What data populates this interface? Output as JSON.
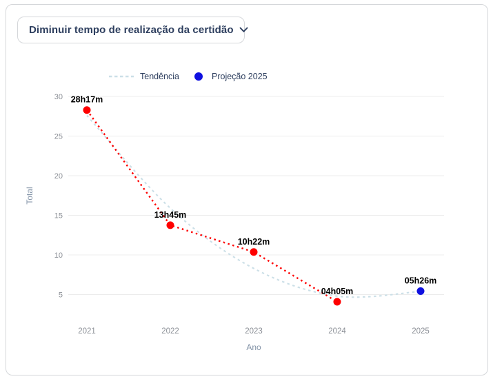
{
  "dropdown": {
    "label": "Diminuir tempo de realização da certidão",
    "chevron_icon": "chevron-down"
  },
  "legend": [
    {
      "label": "Tendência",
      "marker": "dashed-line",
      "color": "#cbdfe7"
    },
    {
      "label": "Projeção 2025",
      "marker": "dot",
      "color": "#0f10e0"
    }
  ],
  "chart_data": {
    "type": "line",
    "xlabel": "Ano",
    "ylabel": "Total",
    "x": [
      2021,
      2022,
      2023,
      2024,
      2025
    ],
    "yticks": [
      5,
      10,
      15,
      20,
      25,
      30
    ],
    "ylim": [
      2.5,
      31.5
    ],
    "grid": "horizontal",
    "legend_position": "top",
    "series": [
      {
        "role": "actual",
        "style": "dotted-line",
        "color": "#fe0000",
        "x": [
          2021,
          2022,
          2023,
          2024
        ],
        "values": [
          28.283,
          13.75,
          10.367,
          4.083
        ],
        "point_labels": [
          "28h17m",
          "13h45m",
          "10h22m",
          "04h05m"
        ]
      },
      {
        "role": "projection",
        "style": "point",
        "color": "#0f10e0",
        "x": [
          2025
        ],
        "values": [
          5.433
        ],
        "point_labels": [
          "05h26m"
        ]
      },
      {
        "role": "trend",
        "style": "dashed-curve",
        "color": "#cbdfe7",
        "x": [
          2021,
          2022,
          2023,
          2024,
          2025
        ],
        "values": [
          27.6,
          15.9,
          8.3,
          4.8,
          5.4
        ]
      }
    ],
    "colors": {
      "gridline": "#ececec",
      "tick_text": "#8b8f96",
      "point_label_text": "#000000"
    }
  }
}
